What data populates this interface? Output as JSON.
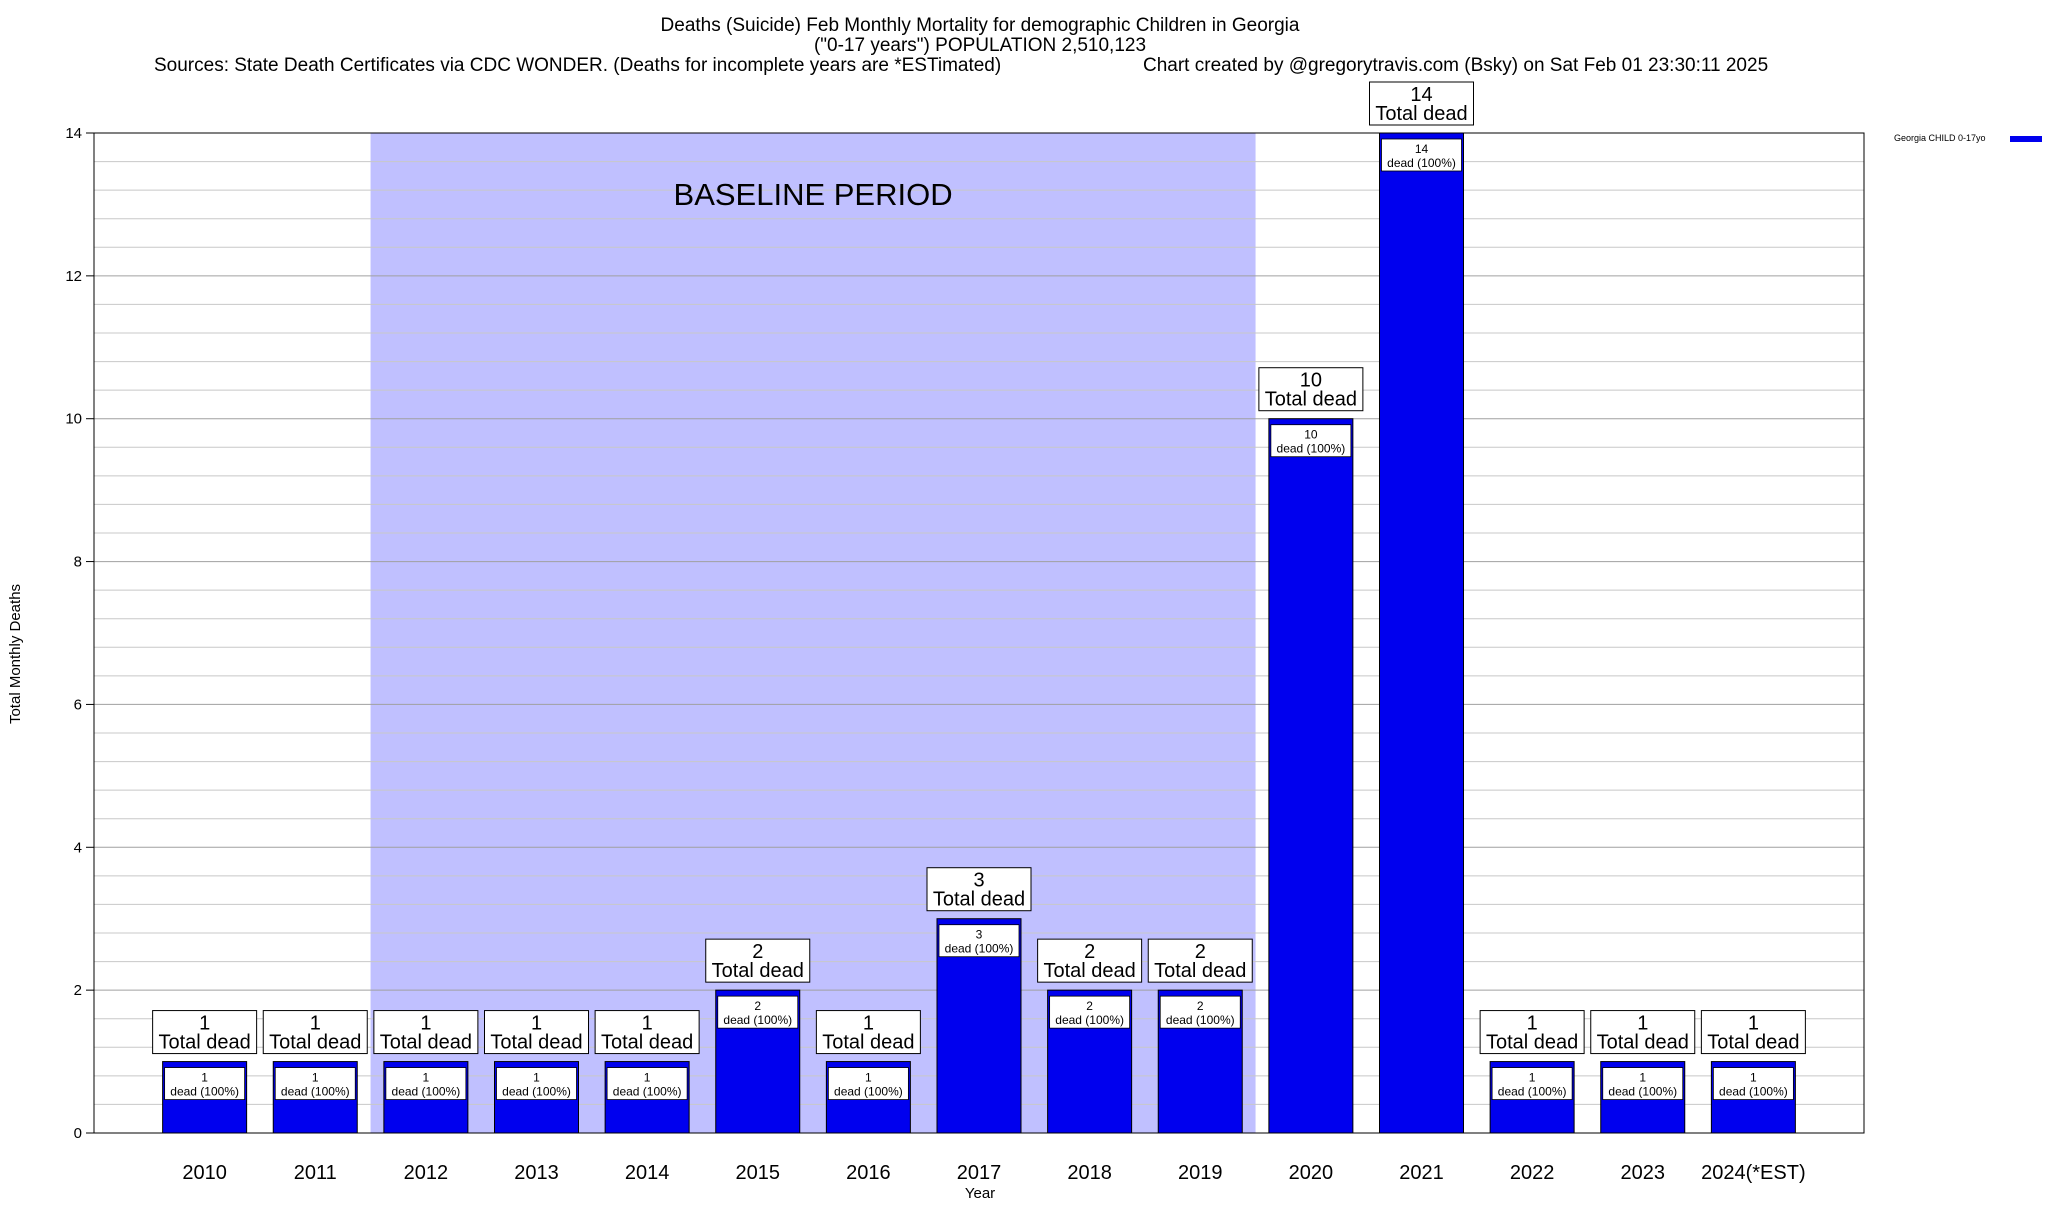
{
  "chart_data": {
    "type": "bar",
    "title_lines": [
      "Deaths (Suicide) Feb Monthly Mortality for demographic Children in Georgia",
      "(\"0-17 years\") POPULATION 2,510,123"
    ],
    "sources": "Sources: State Death Certificates via CDC WONDER. (Deaths for incomplete years are *ESTimated)",
    "credit": "Chart created by @gregorytravis.com (Bsky) on Sat Feb 01 23:30:11 2025",
    "xlabel": "Year",
    "ylabel": "Total Monthly Deaths",
    "ylim": [
      0,
      14
    ],
    "y_ticks": [
      0,
      2,
      4,
      6,
      8,
      10,
      12,
      14
    ],
    "y_minor_step": 0.4,
    "grid": true,
    "categories": [
      "2010",
      "2011",
      "2012",
      "2013",
      "2014",
      "2015",
      "2016",
      "2017",
      "2018",
      "2019",
      "2020",
      "2021",
      "2022",
      "2023",
      "2024(*EST)"
    ],
    "series": [
      {
        "name": "Georgia CHILD 0-17yo",
        "color": "#0000ee",
        "values": [
          1,
          1,
          1,
          1,
          1,
          2,
          1,
          3,
          2,
          2,
          10,
          14,
          1,
          1,
          1
        ]
      }
    ],
    "total_label_suffix": "Total dead",
    "inner_label_suffix": "dead (100%)",
    "baseline": {
      "label": "BASELINE PERIOD",
      "from": "2012",
      "to": "2019",
      "color": "#c0c0ff"
    },
    "legend_position": "top-right"
  }
}
